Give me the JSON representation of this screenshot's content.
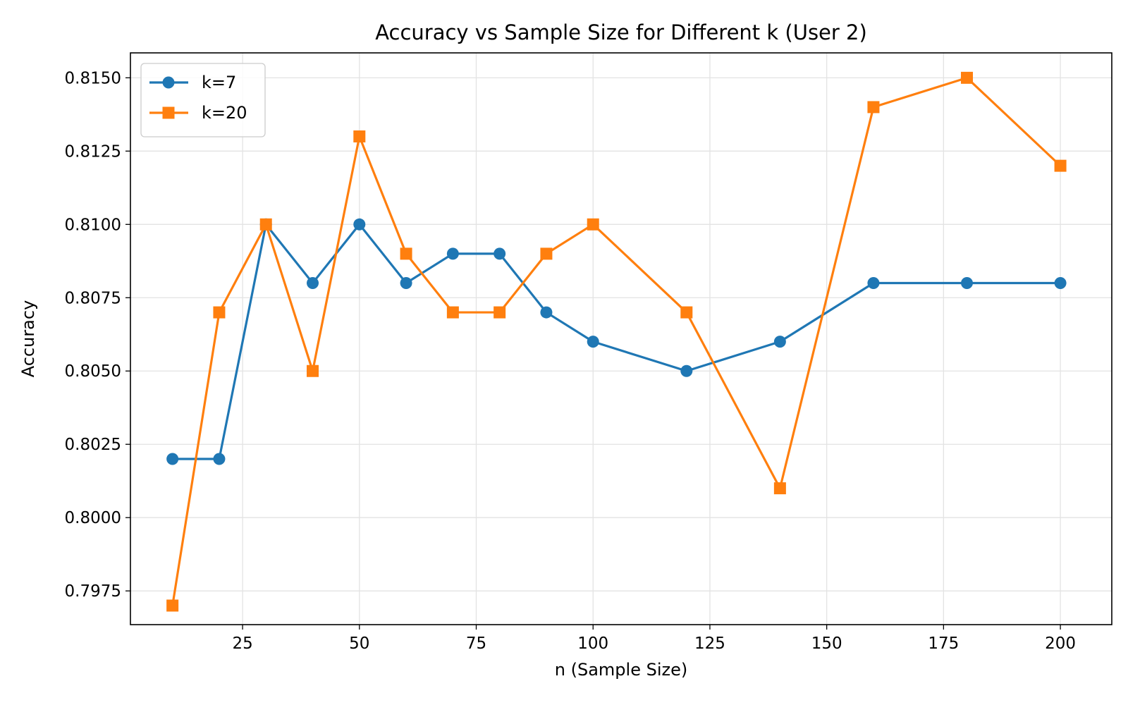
{
  "chart_data": {
    "type": "line",
    "title": "Accuracy vs Sample Size for Different k (User 2)",
    "xlabel": "n (Sample Size)",
    "ylabel": "Accuracy",
    "xlim": [
      1,
      211
    ],
    "ylim": [
      0.79635,
      0.81585
    ],
    "xticks": [
      25,
      50,
      75,
      100,
      125,
      150,
      175,
      200
    ],
    "xtick_labels": [
      "25",
      "50",
      "75",
      "100",
      "125",
      "150",
      "175",
      "200"
    ],
    "yticks": [
      0.7975,
      0.8,
      0.8025,
      0.805,
      0.8075,
      0.81,
      0.8125,
      0.815
    ],
    "ytick_labels": [
      "0.7975",
      "0.8000",
      "0.8025",
      "0.8050",
      "0.8075",
      "0.8100",
      "0.8125",
      "0.8150"
    ],
    "grid": true,
    "legend_position": "top-left",
    "x": [
      10,
      20,
      30,
      40,
      50,
      60,
      70,
      80,
      90,
      100,
      120,
      140,
      160,
      180,
      200
    ],
    "series": [
      {
        "name": "k=7",
        "color": "#1f77b4",
        "marker": "circle",
        "values": [
          0.802,
          0.802,
          0.81,
          0.808,
          0.81,
          0.808,
          0.809,
          0.809,
          0.807,
          0.806,
          0.805,
          0.806,
          0.808,
          0.808,
          0.808
        ]
      },
      {
        "name": "k=20",
        "color": "#ff7f0e",
        "marker": "square",
        "values": [
          0.797,
          0.807,
          0.81,
          0.805,
          0.813,
          0.809,
          0.807,
          0.807,
          0.809,
          0.81,
          0.807,
          0.801,
          0.814,
          0.815,
          0.812
        ]
      }
    ]
  }
}
